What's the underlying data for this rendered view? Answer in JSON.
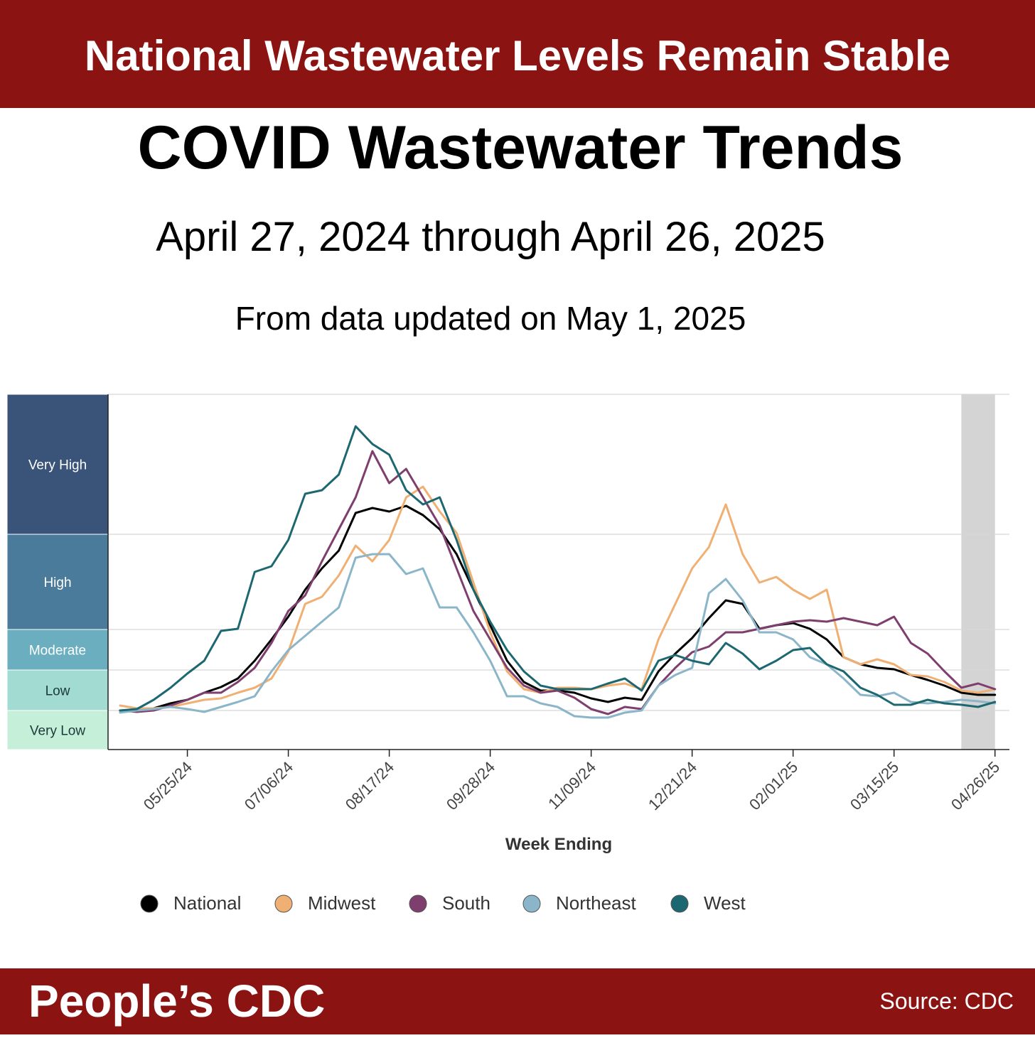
{
  "header": {
    "title": "National Wastewater Levels Remain Stable"
  },
  "footer": {
    "brand": "People’s CDC",
    "source": "Source: CDC"
  },
  "chart_data": {
    "type": "line",
    "title": "COVID Wastewater Trends",
    "subtitle": "April 27, 2024 through April 26, 2025",
    "note": "From data updated on May 1, 2025",
    "x_label": "Week Ending",
    "x": [
      "04/27/24",
      "05/04/24",
      "05/11/24",
      "05/18/24",
      "05/25/24",
      "06/01/24",
      "06/08/24",
      "06/15/24",
      "06/22/24",
      "06/29/24",
      "07/06/24",
      "07/13/24",
      "07/20/24",
      "07/27/24",
      "08/03/24",
      "08/10/24",
      "08/17/24",
      "08/24/24",
      "08/31/24",
      "09/07/24",
      "09/14/24",
      "09/21/24",
      "09/28/24",
      "10/05/24",
      "10/12/24",
      "10/19/24",
      "10/26/24",
      "11/02/24",
      "11/09/24",
      "11/16/24",
      "11/23/24",
      "11/30/24",
      "12/07/24",
      "12/14/24",
      "12/21/24",
      "12/28/24",
      "01/04/25",
      "01/11/25",
      "01/18/25",
      "01/25/25",
      "02/01/25",
      "02/08/25",
      "02/15/25",
      "02/22/25",
      "03/01/25",
      "03/08/25",
      "03/15/25",
      "03/22/25",
      "03/29/25",
      "04/05/25",
      "04/12/25",
      "04/19/25",
      "04/26/25"
    ],
    "xlim": [
      "04/22/24",
      "05/02/25"
    ],
    "xticks": [
      "05/25/24",
      "07/06/24",
      "08/17/24",
      "09/28/24",
      "11/09/24",
      "12/21/24",
      "02/01/25",
      "03/15/25",
      "04/26/25"
    ],
    "shade": [
      "04/12/25",
      "04/26/25"
    ],
    "ylim": [
      0,
      10
    ],
    "bands": [
      {
        "name": "Very Low",
        "from": 0,
        "to": 1.1,
        "color": "#c6efd9"
      },
      {
        "name": "Low",
        "from": 1.1,
        "to": 2.24,
        "color": "#a1dbd2"
      },
      {
        "name": "Moderate",
        "from": 2.24,
        "to": 3.38,
        "color": "#6aaebf"
      },
      {
        "name": "High",
        "from": 3.38,
        "to": 6.06,
        "color": "#4a7b9a"
      },
      {
        "name": "Very High",
        "from": 6.06,
        "to": 10,
        "color": "#3a5479"
      }
    ],
    "series": [
      {
        "name": "National",
        "color": "#000000",
        "values": [
          1.1,
          1.1,
          1.16,
          1.3,
          1.4,
          1.6,
          1.76,
          2,
          2.5,
          3.1,
          3.74,
          4.5,
          5.1,
          5.6,
          6.66,
          6.8,
          6.7,
          6.86,
          6.6,
          6.2,
          5.5,
          4.5,
          3.5,
          2.5,
          1.9,
          1.66,
          1.66,
          1.6,
          1.44,
          1.34,
          1.46,
          1.4,
          2.2,
          2.7,
          3.14,
          3.7,
          4.2,
          4.1,
          3.4,
          3.5,
          3.56,
          3.4,
          3.1,
          2.6,
          2.4,
          2.3,
          2.26,
          2.1,
          1.96,
          1.8,
          1.6,
          1.54,
          1.54
        ]
      },
      {
        "name": "Midwest",
        "color": "#f0b073",
        "values": [
          1.24,
          1.16,
          1.16,
          1.2,
          1.3,
          1.4,
          1.44,
          1.6,
          1.74,
          2,
          2.76,
          4.1,
          4.3,
          4.9,
          5.74,
          5.3,
          5.9,
          7.1,
          7.4,
          6.7,
          6.1,
          4.7,
          3.3,
          2.2,
          1.7,
          1.6,
          1.74,
          1.74,
          1.7,
          1.8,
          1.86,
          1.7,
          3.1,
          4.1,
          5.1,
          5.7,
          6.9,
          5.5,
          4.7,
          4.86,
          4.5,
          4.24,
          4.5,
          2.6,
          2.4,
          2.54,
          2.4,
          2.1,
          2.06,
          1.9,
          1.66,
          1.6,
          1.7
        ]
      },
      {
        "name": "South",
        "color": "#7e3f6e",
        "values": [
          1.1,
          1.06,
          1.1,
          1.24,
          1.4,
          1.6,
          1.6,
          1.9,
          2.3,
          3,
          3.9,
          4.34,
          5.3,
          6.2,
          7.1,
          8.4,
          7.5,
          7.9,
          7.1,
          6.3,
          5.1,
          3.9,
          3.1,
          2.3,
          1.8,
          1.6,
          1.66,
          1.46,
          1.14,
          1,
          1.2,
          1.14,
          1.8,
          2.3,
          2.74,
          2.9,
          3.3,
          3.3,
          3.4,
          3.5,
          3.6,
          3.64,
          3.6,
          3.7,
          3.6,
          3.5,
          3.74,
          3,
          2.7,
          2.2,
          1.74,
          1.86,
          1.7
        ]
      },
      {
        "name": "Northeast",
        "color": "#8bb6c9",
        "values": [
          1.04,
          1.1,
          1.14,
          1.2,
          1.14,
          1.06,
          1.2,
          1.34,
          1.5,
          2.2,
          2.8,
          3.2,
          3.6,
          4,
          5.4,
          5.5,
          5.5,
          4.94,
          5.1,
          4,
          4,
          3.3,
          2.5,
          1.5,
          1.5,
          1.3,
          1.2,
          0.94,
          0.9,
          0.9,
          1.04,
          1.1,
          1.8,
          2.1,
          2.3,
          4.4,
          4.8,
          4.2,
          3.3,
          3.3,
          3.1,
          2.6,
          2.4,
          2,
          1.54,
          1.5,
          1.6,
          1.34,
          1.3,
          1.34,
          1.4,
          1.36,
          1.3
        ]
      },
      {
        "name": "West",
        "color": "#1d6870",
        "values": [
          1.1,
          1.14,
          1.4,
          1.74,
          2.14,
          2.5,
          3.34,
          3.4,
          5,
          5.16,
          5.9,
          7.2,
          7.3,
          7.74,
          9.1,
          8.6,
          8.3,
          7.3,
          6.9,
          7.1,
          5.9,
          4.5,
          3.6,
          2.8,
          2.2,
          1.8,
          1.7,
          1.7,
          1.7,
          1.86,
          2,
          1.66,
          2.5,
          2.66,
          2.5,
          2.4,
          3,
          2.7,
          2.26,
          2.5,
          2.8,
          2.86,
          2.4,
          2.2,
          1.74,
          1.54,
          1.26,
          1.26,
          1.4,
          1.3,
          1.26,
          1.2,
          1.34
        ]
      }
    ]
  }
}
